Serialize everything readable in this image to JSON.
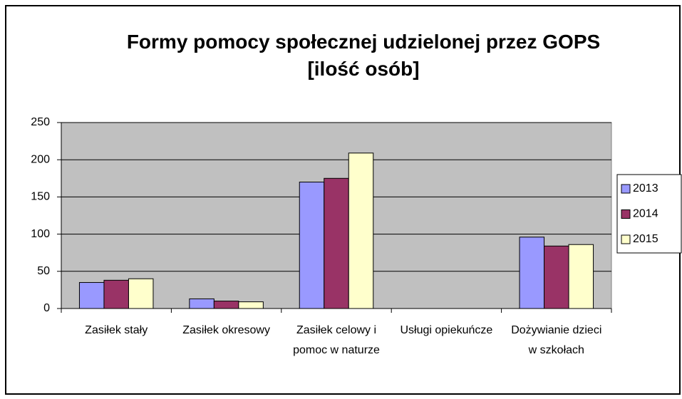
{
  "chart_data": {
    "type": "bar",
    "title": "Formy pomocy społecznej udzielonej przez GOPS [ilość osób]",
    "categories": [
      "Zasiłek stały",
      "Zasiłek okresowy",
      "Zasiłek celowy i pomoc w naturze",
      "Usługi opiekuńcze",
      "Dożywianie dzieci w szkołach"
    ],
    "series": [
      {
        "name": "2013",
        "color": "#9999ff",
        "values": [
          35,
          13,
          170,
          0,
          96
        ]
      },
      {
        "name": "2014",
        "color": "#993366",
        "values": [
          38,
          10,
          175,
          0,
          84
        ]
      },
      {
        "name": "2015",
        "color": "#ffffcc",
        "values": [
          40,
          9,
          209,
          0,
          86
        ]
      }
    ],
    "ylim": [
      0,
      250
    ],
    "yticks": [
      0,
      50,
      100,
      150,
      200,
      250
    ],
    "grid": true,
    "legend": "right"
  }
}
